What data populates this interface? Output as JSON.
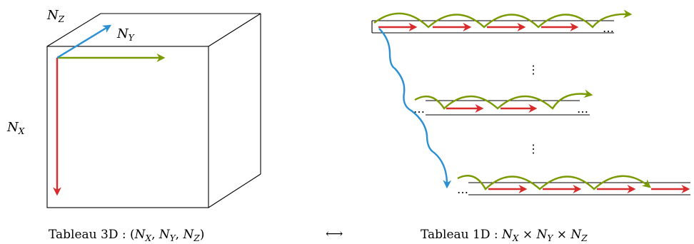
{
  "cube": {
    "label_z": "N_Z",
    "label_y": "N_Y",
    "label_x": "N_X"
  },
  "captions": {
    "left": "Tableau 3D : (N_X, N_Y, N_Z)",
    "arrow": "⟷",
    "right": "Tableau 1D : N_X × N_Y × N_Z"
  },
  "ellipsis": {
    "horizontal": "…",
    "vertical": "⋮"
  },
  "colors": {
    "red": "#d92b2b",
    "green": "#7a9a01",
    "blue": "#2a8fd4",
    "black": "#000000"
  }
}
